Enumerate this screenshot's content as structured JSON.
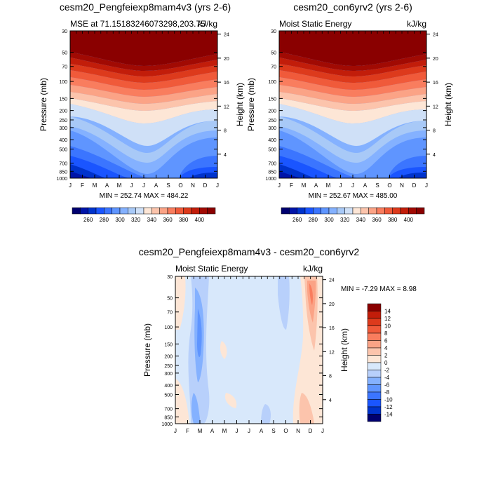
{
  "chart_data": [
    {
      "type": "contour",
      "title": "cesm20_Pengfeiexp8mam4v3 (yrs 2-6)",
      "left_string": "MSE at 71.15183246073298,203.75",
      "right_string": "kJ/kg",
      "ylabel": "Pressure (mb)",
      "ylabel_right": "Height (km)",
      "x_ticks": [
        "J",
        "F",
        "M",
        "A",
        "M",
        "J",
        "J",
        "A",
        "S",
        "O",
        "N",
        "D",
        "J"
      ],
      "y_ticks": [
        30,
        50,
        70,
        100,
        150,
        200,
        250,
        300,
        400,
        500,
        700,
        850,
        1000
      ],
      "height_ticks": [
        24,
        20,
        16,
        12,
        8,
        4
      ],
      "stats": "MIN = 252.74  MAX = 484.22",
      "colorbar": {
        "labels": [
          "260",
          "280",
          "300",
          "320",
          "340",
          "360",
          "380",
          "400"
        ],
        "levels": [
          250,
          260,
          270,
          280,
          290,
          300,
          310,
          320,
          330,
          340,
          350,
          360,
          370,
          380,
          390,
          400,
          410
        ],
        "colors": [
          "#00006f",
          "#0014a8",
          "#0033cc",
          "#1a55ff",
          "#3b75ff",
          "#5f95ff",
          "#84b1ff",
          "#a8c9f7",
          "#cfe0f7",
          "#fde6d6",
          "#fcc4ac",
          "#fba386",
          "#f97d5e",
          "#f05a3a",
          "#dd3a1c",
          "#c21d0a",
          "#a10a03",
          "#8a0000"
        ]
      }
    },
    {
      "type": "contour",
      "title": "cesm20_con6yrv2 (yrs 2-6)",
      "left_string": "Moist Static Energy",
      "right_string": "kJ/kg",
      "ylabel": "Pressure (mb)",
      "ylabel_right": "Height (km)",
      "x_ticks": [
        "J",
        "F",
        "M",
        "A",
        "M",
        "J",
        "J",
        "A",
        "S",
        "O",
        "N",
        "D",
        "J"
      ],
      "y_ticks": [
        30,
        50,
        70,
        100,
        150,
        200,
        250,
        300,
        400,
        500,
        700,
        850,
        1000
      ],
      "height_ticks": [
        24,
        20,
        16,
        12,
        8,
        4
      ],
      "stats": "MIN = 252.67  MAX = 485.00",
      "colorbar": {
        "labels": [
          "260",
          "280",
          "300",
          "320",
          "340",
          "360",
          "380",
          "400"
        ],
        "levels": [
          250,
          260,
          270,
          280,
          290,
          300,
          310,
          320,
          330,
          340,
          350,
          360,
          370,
          380,
          390,
          400,
          410
        ],
        "colors": [
          "#00006f",
          "#0014a8",
          "#0033cc",
          "#1a55ff",
          "#3b75ff",
          "#5f95ff",
          "#84b1ff",
          "#a8c9f7",
          "#cfe0f7",
          "#fde6d6",
          "#fcc4ac",
          "#fba386",
          "#f97d5e",
          "#f05a3a",
          "#dd3a1c",
          "#c21d0a",
          "#a10a03",
          "#8a0000"
        ]
      }
    },
    {
      "type": "contour",
      "title": "cesm20_Pengfeiexp8mam4v3 - cesm20_con6yrv2",
      "left_string": "Moist Static Energy",
      "right_string": "kJ/kg",
      "ylabel": "Pressure (mb)",
      "ylabel_right": "Height (km)",
      "x_ticks": [
        "J",
        "F",
        "M",
        "A",
        "M",
        "J",
        "J",
        "A",
        "S",
        "O",
        "N",
        "D",
        "J"
      ],
      "y_ticks": [
        30,
        50,
        70,
        100,
        150,
        200,
        250,
        300,
        400,
        500,
        700,
        850,
        1000
      ],
      "height_ticks": [
        24,
        20,
        16,
        12,
        8,
        4
      ],
      "stats": "MIN =  -7.29 MAX =   8.98",
      "colorbar": {
        "labels": [
          "14",
          "12",
          "10",
          "8",
          "6",
          "4",
          "2",
          "0",
          "-2",
          "-4",
          "-6",
          "-8",
          "-10",
          "-12",
          "-14"
        ],
        "colors": [
          "#8a0000",
          "#c21d0a",
          "#dd3a1c",
          "#f05a3a",
          "#f97d5e",
          "#fba386",
          "#fcc4ac",
          "#fde6d6",
          "#d8e8fb",
          "#b8d0fb",
          "#84b1ff",
          "#5f95ff",
          "#3b75ff",
          "#1a55ff",
          "#0033cc",
          "#00006f"
        ]
      }
    }
  ]
}
